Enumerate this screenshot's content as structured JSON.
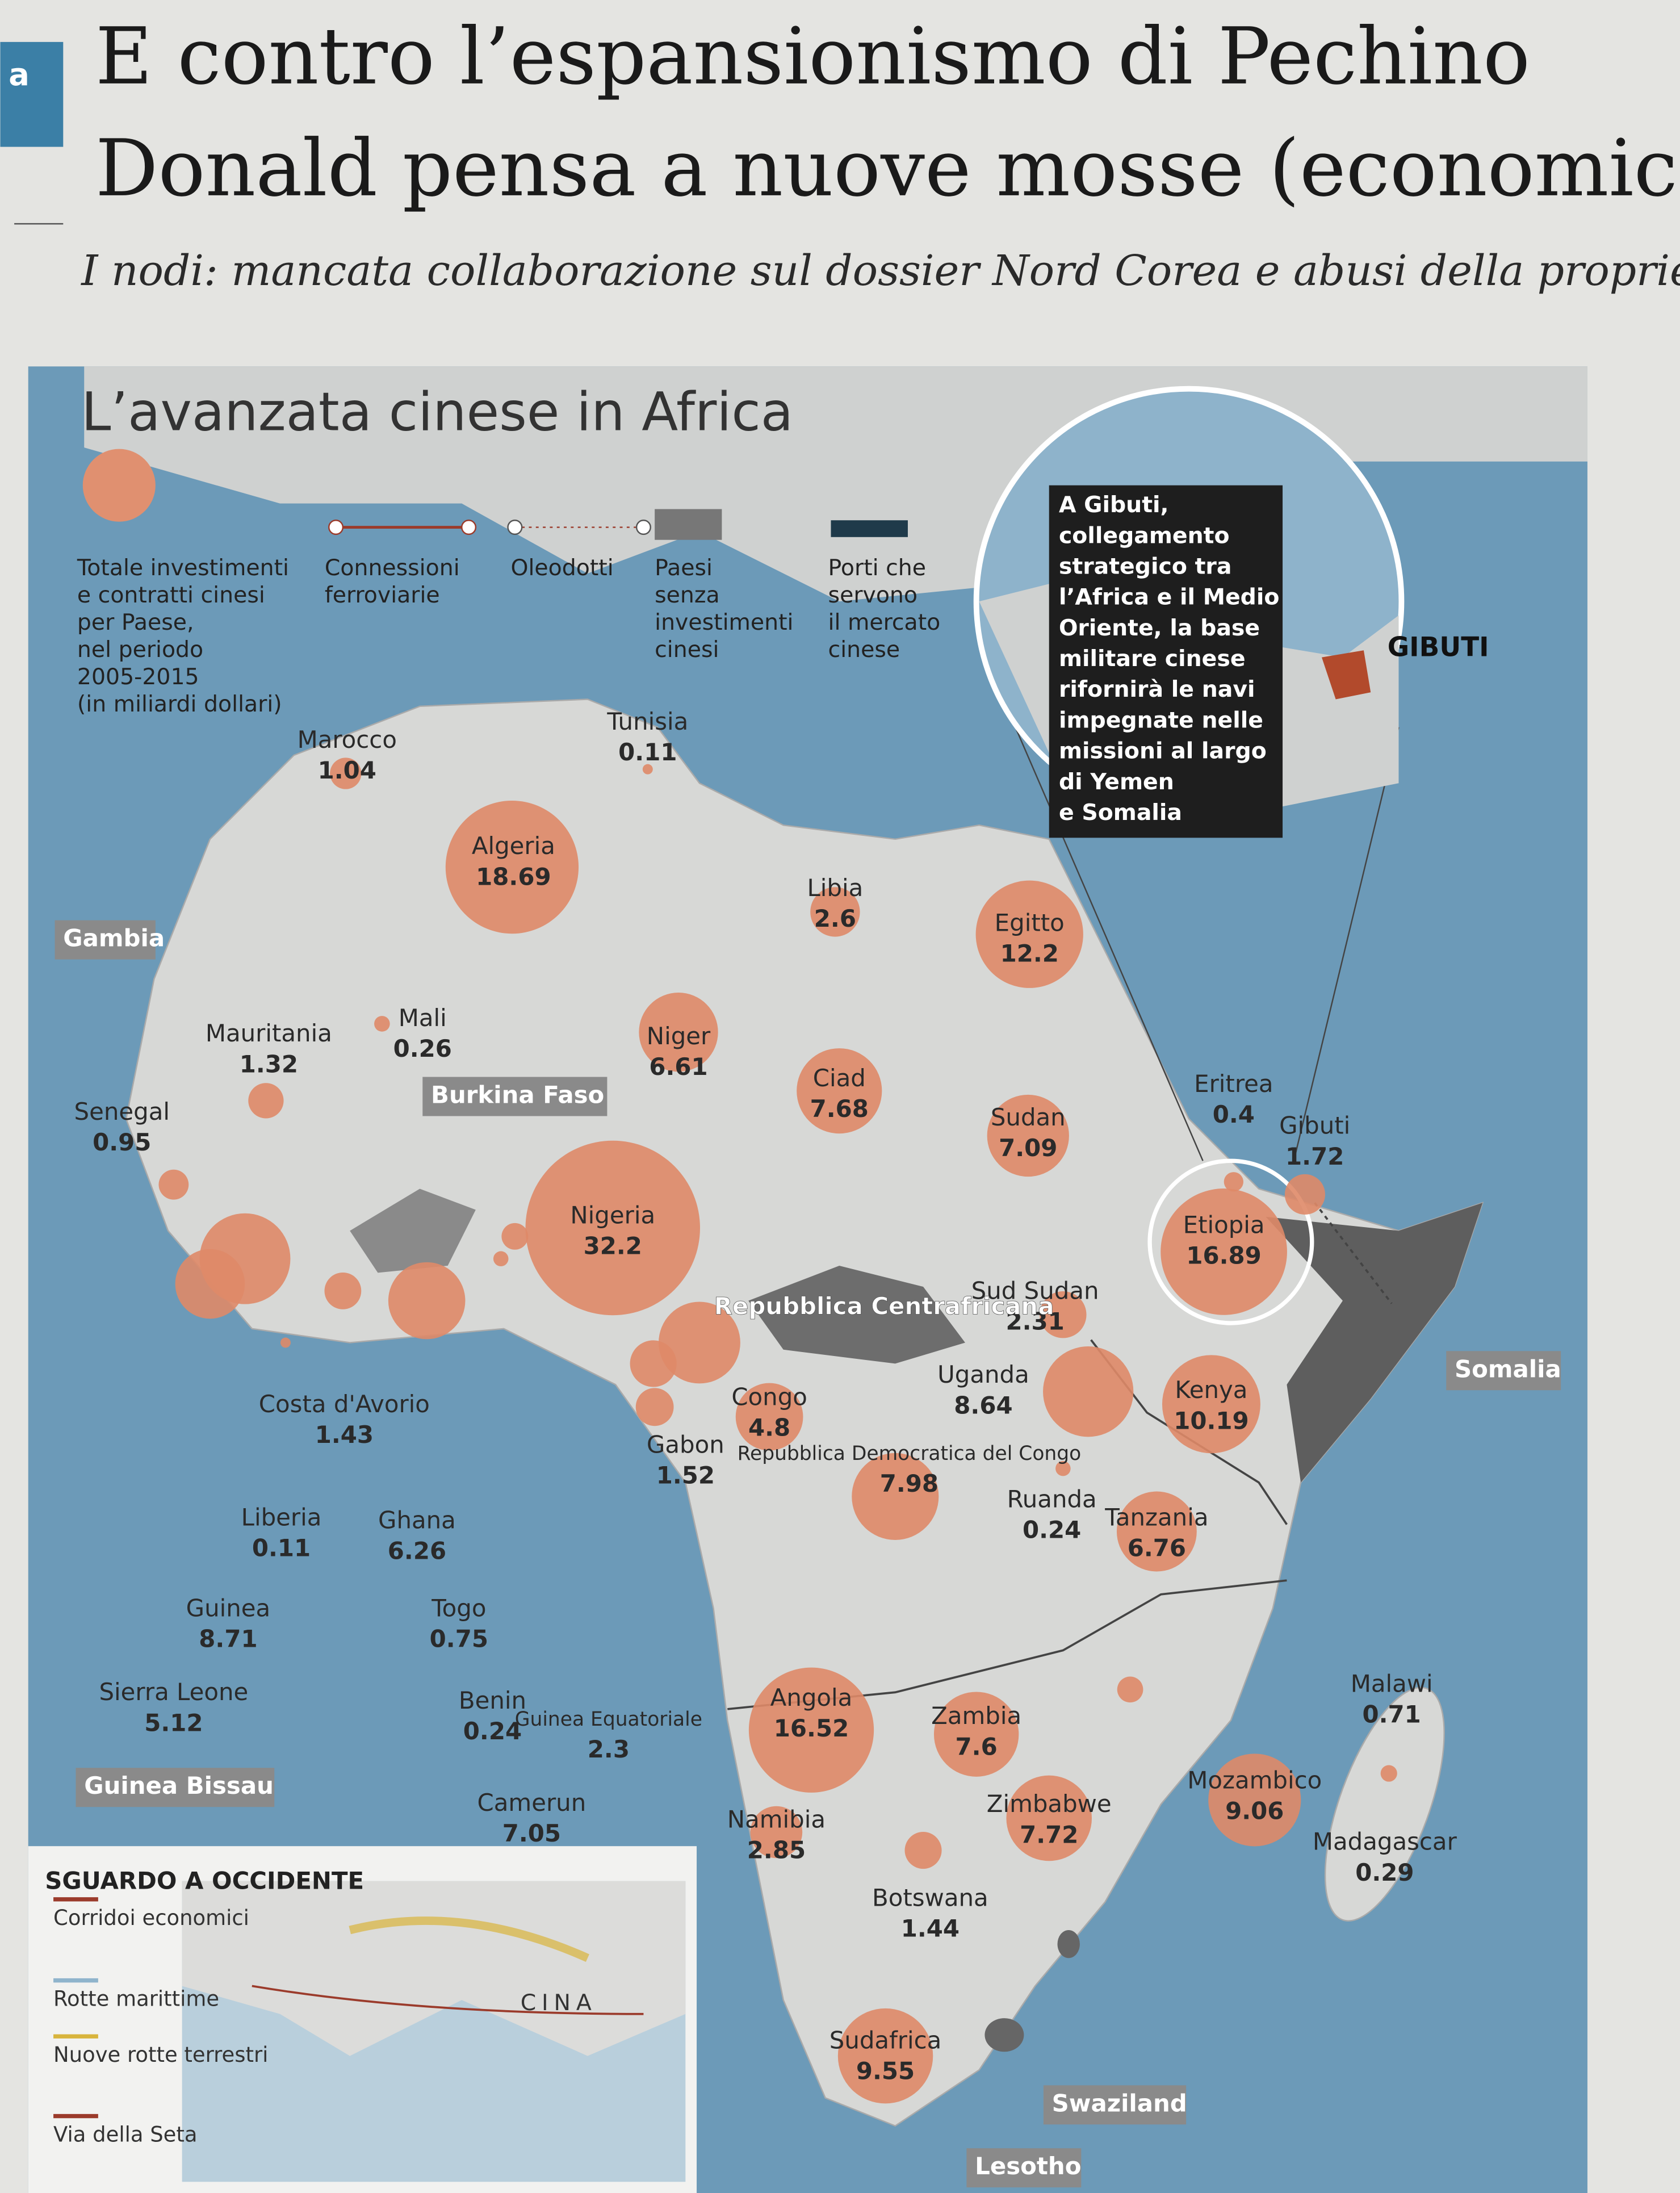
{
  "header": {
    "tag": "a",
    "title": [
      "E contro l’espansionismo di Pechino",
      "Donald pensa a nuove mosse (economic"
    ],
    "subtitle": "I nodi: mancata collaborazione sul dossier Nord Corea e abusi della proprietà inte"
  },
  "map": {
    "title": "L’avanzata cinese in Africa",
    "legend": [
      [
        "Totale investimenti",
        "e contratti cinesi",
        "per Paese,",
        "nel periodo",
        "2005-2015",
        "(in miliardi dollari)"
      ],
      [
        "Connessioni",
        "ferroviarie"
      ],
      [
        "Oleodotti"
      ],
      [
        "Paesi",
        "senza",
        "investimenti",
        "cinesi"
      ],
      [
        "Porti che",
        "servono",
        "il mercato",
        "cinese"
      ]
    ],
    "callout": [
      "A Gibuti,",
      "collegamento",
      "strategico tra",
      "l’Africa e il Medio",
      "Oriente, la base",
      "militare cinese",
      "rifornirà le navi",
      "impegnate nelle",
      "missioni al largo",
      "di Yemen",
      "e Somalia"
    ],
    "inset_label": "GIBUTI",
    "countries": [
      {
        "name": "Marocco",
        "value": 1.04
      },
      {
        "name": "Tunisia",
        "value": 0.11
      },
      {
        "name": "Algeria",
        "value": 18.69
      },
      {
        "name": "Libia",
        "value": 2.6
      },
      {
        "name": "Egitto",
        "value": 12.2
      },
      {
        "name": "Mauritania",
        "value": 1.32
      },
      {
        "name": "Mali",
        "value": 0.26
      },
      {
        "name": "Niger",
        "value": 6.61
      },
      {
        "name": "Ciad",
        "value": 7.68
      },
      {
        "name": "Sudan",
        "value": 7.09
      },
      {
        "name": "Senegal",
        "value": 0.95
      },
      {
        "name": "Nigeria",
        "value": 32.2
      },
      {
        "name": "Eritrea",
        "value": 0.4
      },
      {
        "name": "Gibuti",
        "value": 1.72
      },
      {
        "name": "Etiopia",
        "value": 16.89
      },
      {
        "name": "Sud Sudan",
        "value": 2.31
      },
      {
        "name": "Uganda",
        "value": 8.64
      },
      {
        "name": "Kenya",
        "value": 10.19
      },
      {
        "name": "Congo",
        "value": 4.8
      },
      {
        "name": "Gabon",
        "value": 1.52
      },
      {
        "name": "Costa d'Avorio",
        "value": 1.43
      },
      {
        "name": "Ghana",
        "value": 6.26
      },
      {
        "name": "Liberia",
        "value": 0.11
      },
      {
        "name": "Guinea",
        "value": 8.71
      },
      {
        "name": "Sierra Leone",
        "value": 5.12
      },
      {
        "name": "Togo",
        "value": 0.75
      },
      {
        "name": "Benin",
        "value": 0.24
      },
      {
        "name": "Guinea Equatoriale",
        "value": 2.3
      },
      {
        "name": "Camerun",
        "value": 7.05
      },
      {
        "name": "Repubblica Democratica del Congo",
        "value": 7.98
      },
      {
        "name": "Ruanda",
        "value": 0.24
      },
      {
        "name": "Tanzania",
        "value": 6.76
      },
      {
        "name": "Angola",
        "value": 16.52
      },
      {
        "name": "Zambia",
        "value": 7.6
      },
      {
        "name": "Malawi",
        "value": 0.71
      },
      {
        "name": "Mozambico",
        "value": 9.06
      },
      {
        "name": "Madagascar",
        "value": 0.29
      },
      {
        "name": "Namibia",
        "value": 2.85
      },
      {
        "name": "Zimbabwe",
        "value": 7.72
      },
      {
        "name": "Botswana",
        "value": 1.44
      },
      {
        "name": "Sudafrica",
        "value": 9.55
      }
    ],
    "tags": [
      "Gambia",
      "Burkina Faso",
      "Guinea Bissau",
      "Somalia",
      "Swaziland",
      "Lesotho"
    ],
    "region_label": "Repubblica Centrafricana",
    "inset": {
      "title": "SGUARDO A OCCIDENTE",
      "legend": [
        "Corridoi economici",
        "Rotte marittime",
        "Nuove rotte terrestri",
        "Via della Seta"
      ],
      "label": "CINA"
    }
  }
}
